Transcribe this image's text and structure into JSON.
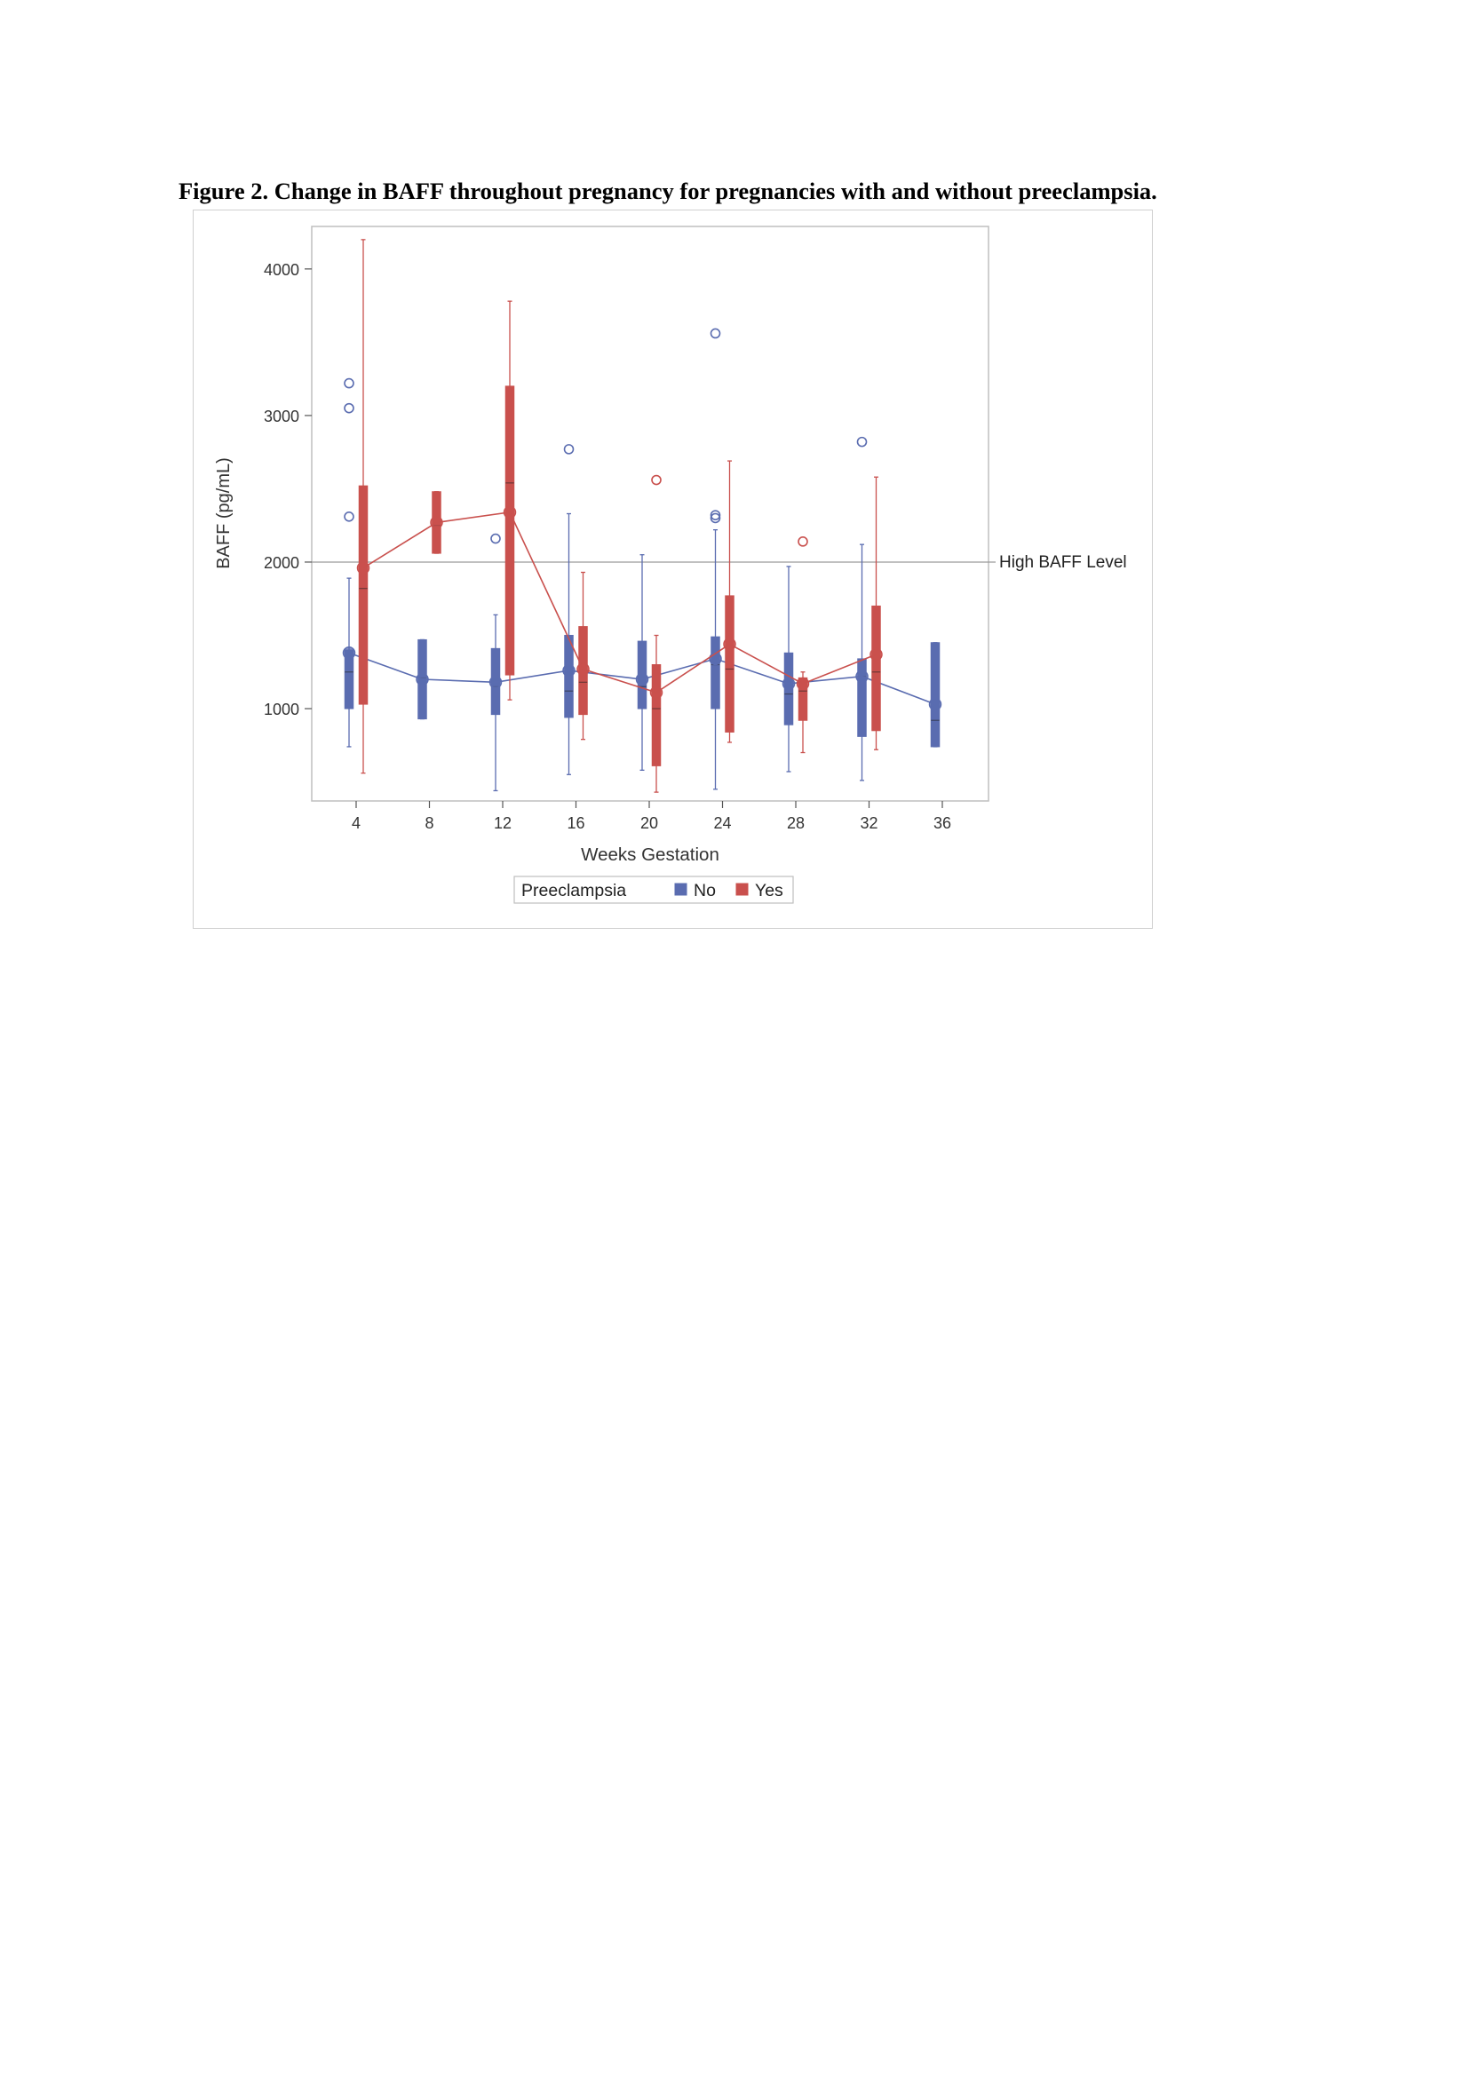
{
  "caption": "Figure 2. Change in BAFF throughout pregnancy for pregnancies with and without preeclampsia.",
  "chart_data": {
    "type": "box",
    "title": "",
    "xlabel": "Weeks Gestation",
    "ylabel": "BAFF (pg/mL)",
    "categories": [
      "4",
      "8",
      "12",
      "16",
      "20",
      "24",
      "28",
      "32",
      "36"
    ],
    "yticks": [
      1000,
      2000,
      3000,
      4000
    ],
    "ylim": [
      370,
      4290
    ],
    "reference_line": {
      "value": 2000,
      "label": "High BAFF Level"
    },
    "legend": {
      "title": "Preeclampsia",
      "position": "bottom"
    },
    "series": [
      {
        "name": "No",
        "color": "#5a6cb0",
        "boxes": [
          {
            "x": "4",
            "whisker_low": 740,
            "q1": 1000,
            "median": 1250,
            "q3": 1400,
            "whisker_high": 1890,
            "mean": 1380,
            "outliers": [
              3220,
              3050,
              2310
            ]
          },
          {
            "x": "8",
            "whisker_low": 930,
            "q1": 930,
            "median": 1210,
            "q3": 1470,
            "whisker_high": 1470,
            "mean": 1200,
            "outliers": []
          },
          {
            "x": "12",
            "whisker_low": 440,
            "q1": 960,
            "median": 1150,
            "q3": 1410,
            "whisker_high": 1640,
            "mean": 1180,
            "outliers": [
              2160
            ]
          },
          {
            "x": "16",
            "whisker_low": 550,
            "q1": 940,
            "median": 1120,
            "q3": 1500,
            "whisker_high": 2330,
            "mean": 1260,
            "outliers": [
              2770
            ]
          },
          {
            "x": "20",
            "whisker_low": 580,
            "q1": 1000,
            "median": 1150,
            "q3": 1460,
            "whisker_high": 2050,
            "mean": 1200,
            "outliers": []
          },
          {
            "x": "24",
            "whisker_low": 450,
            "q1": 1000,
            "median": 1300,
            "q3": 1490,
            "whisker_high": 2220,
            "mean": 1340,
            "outliers": [
              3560,
              2320,
              2300
            ]
          },
          {
            "x": "28",
            "whisker_low": 570,
            "q1": 890,
            "median": 1100,
            "q3": 1380,
            "whisker_high": 1970,
            "mean": 1170,
            "outliers": []
          },
          {
            "x": "32",
            "whisker_low": 510,
            "q1": 810,
            "median": 1220,
            "q3": 1340,
            "whisker_high": 2120,
            "mean": 1220,
            "outliers": [
              2820
            ]
          },
          {
            "x": "36",
            "whisker_low": 740,
            "q1": 740,
            "median": 920,
            "q3": 1450,
            "whisker_high": 1450,
            "mean": 1030,
            "outliers": []
          }
        ]
      },
      {
        "name": "Yes",
        "color": "#c9504d",
        "boxes": [
          {
            "x": "4",
            "whisker_low": 560,
            "q1": 1030,
            "median": 1820,
            "q3": 2520,
            "whisker_high": 4200,
            "mean": 1960,
            "outliers": []
          },
          {
            "x": "8",
            "whisker_low": 2060,
            "q1": 2060,
            "median": 2250,
            "q3": 2480,
            "whisker_high": 2480,
            "mean": 2270,
            "outliers": []
          },
          {
            "x": "12",
            "whisker_low": 1060,
            "q1": 1230,
            "median": 2540,
            "q3": 3200,
            "whisker_high": 3780,
            "mean": 2340,
            "outliers": []
          },
          {
            "x": "16",
            "whisker_low": 790,
            "q1": 960,
            "median": 1180,
            "q3": 1560,
            "whisker_high": 1930,
            "mean": 1270,
            "outliers": []
          },
          {
            "x": "20",
            "whisker_low": 430,
            "q1": 610,
            "median": 1000,
            "q3": 1300,
            "whisker_high": 1500,
            "mean": 1110,
            "outliers": [
              2560
            ]
          },
          {
            "x": "24",
            "whisker_low": 770,
            "q1": 840,
            "median": 1270,
            "q3": 1770,
            "whisker_high": 2690,
            "mean": 1440,
            "outliers": []
          },
          {
            "x": "28",
            "whisker_low": 700,
            "q1": 920,
            "median": 1120,
            "q3": 1210,
            "whisker_high": 1250,
            "mean": 1170,
            "outliers": [
              2140
            ]
          },
          {
            "x": "32",
            "whisker_low": 720,
            "q1": 850,
            "median": 1250,
            "q3": 1700,
            "whisker_high": 2580,
            "mean": 1370,
            "outliers": []
          }
        ]
      }
    ]
  }
}
